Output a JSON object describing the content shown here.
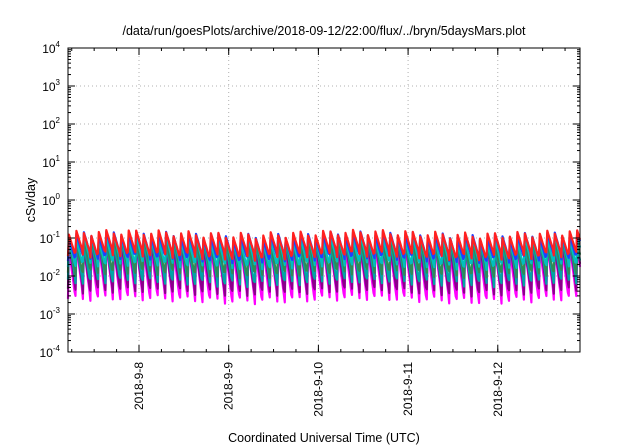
{
  "chart_data": {
    "type": "line",
    "title": "/data/run/goesPlots/archive/2018-09-12/22:00/flux/../bryn/5daysMars.plot",
    "xlabel": "Coordinated Universal Time (UTC)",
    "ylabel": "cSv/day",
    "yscale": "log",
    "ylim": [
      0.0001,
      10000
    ],
    "xlim": [
      "2018-09-07 05:00",
      "2018-09-12 22:00"
    ],
    "grid": true,
    "y_ticks": [
      {
        "base": "10",
        "exp": "-4"
      },
      {
        "base": "10",
        "exp": "-3"
      },
      {
        "base": "10",
        "exp": "-2"
      },
      {
        "base": "10",
        "exp": "-1"
      },
      {
        "base": "10",
        "exp": "0"
      },
      {
        "base": "10",
        "exp": "1"
      },
      {
        "base": "10",
        "exp": "2"
      },
      {
        "base": "10",
        "exp": "3"
      },
      {
        "base": "10",
        "exp": "4"
      }
    ],
    "x_ticks": [
      {
        "label": "2018-9-8",
        "date": "2018-09-08 00:00"
      },
      {
        "label": "2018-9-9",
        "date": "2018-09-09 00:00"
      },
      {
        "label": "2018-9-10",
        "date": "2018-09-10 00:00"
      },
      {
        "label": "2018-9-11",
        "date": "2018-09-11 00:00"
      },
      {
        "label": "2018-9-12",
        "date": "2018-09-12 00:00"
      }
    ],
    "cycle_period_hours": 2.0,
    "series": [
      {
        "color": "#ff00ff",
        "peak": 0.055,
        "trough": 0.0025
      },
      {
        "color": "#8b008b",
        "peak": 0.07,
        "trough": 0.004
      },
      {
        "color": "#00a5a5",
        "peak": 0.08,
        "trough": 0.007
      },
      {
        "color": "#2e8b57",
        "peak": 0.09,
        "trough": 0.012
      },
      {
        "color": "#00bfbf",
        "peak": 0.1,
        "trough": 0.02
      },
      {
        "color": "#1f3fff",
        "peak": 0.12,
        "trough": 0.03
      },
      {
        "color": "#ff2020",
        "peak": 0.13,
        "trough": 0.035
      }
    ]
  }
}
